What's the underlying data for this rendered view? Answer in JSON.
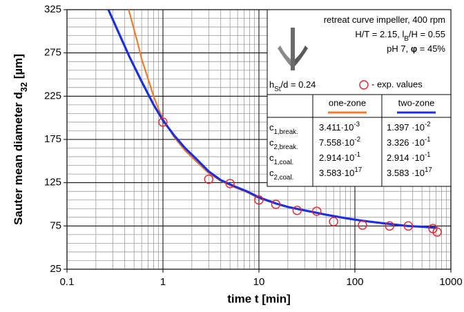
{
  "chart_data": {
    "type": "line",
    "xlabel": "time t [min]",
    "ylabel": [
      {
        "t": "Sauter mean diameter d"
      },
      {
        "t": "32",
        "sub": true
      },
      {
        "t": "  [µm]"
      }
    ],
    "xscale": "log",
    "xlim": [
      0.1,
      1000
    ],
    "xticks": [
      0.1,
      1,
      10,
      100,
      1000
    ],
    "ylim": [
      25,
      325
    ],
    "yticks": [
      25,
      75,
      125,
      175,
      225,
      275,
      325
    ],
    "grid": true,
    "minor_grid": true,
    "legend": "upper right",
    "series": [
      {
        "name": "one-zone",
        "color": "#f07c28",
        "x": [
          0.44,
          0.5,
          0.55,
          0.6,
          0.7,
          0.8,
          0.9,
          1,
          1.3,
          1.7,
          2.2,
          3,
          4,
          5.5,
          7.5,
          10,
          15,
          20,
          30,
          50,
          80,
          120,
          200,
          350,
          500,
          700
        ],
        "values": [
          325,
          302,
          285,
          268,
          245,
          225,
          210,
          199,
          178,
          162,
          150,
          136,
          127,
          120,
          114,
          107,
          101,
          97,
          93,
          88,
          84,
          81,
          78,
          75,
          74,
          72
        ]
      },
      {
        "name": "two-zone",
        "color": "#1c2fe0",
        "x": [
          0.27,
          0.35,
          0.45,
          0.6,
          0.8,
          1,
          1.3,
          1.7,
          2.2,
          3,
          4,
          5.5,
          7.5,
          10,
          15,
          20,
          30,
          50,
          80,
          120,
          200,
          350,
          500,
          700
        ],
        "values": [
          325,
          297,
          270,
          242,
          215,
          197,
          180,
          165,
          153,
          138,
          128,
          121,
          115,
          108,
          101,
          97,
          93,
          88,
          84,
          81,
          78,
          75,
          74,
          73
        ]
      },
      {
        "name": "- exp. values",
        "type": "scatter",
        "color": "#e8202a",
        "x": [
          1,
          3,
          5,
          10,
          15,
          25,
          40,
          60,
          120,
          230,
          360,
          650,
          720
        ],
        "values": [
          195,
          129,
          124,
          105,
          100,
          93,
          92,
          80,
          76,
          75,
          75,
          72,
          68
        ]
      }
    ],
    "annotation": [
      [
        {
          "t": "retreat curve impeller, 400 rpm"
        }
      ],
      [
        {
          "t": "H/T = 2.15, l"
        },
        {
          "t": "B",
          "sub": true
        },
        {
          "t": "/H = 0.55"
        }
      ],
      [
        {
          "t": "pH 7, "
        },
        {
          "t": "φ",
          "bold": true
        },
        {
          "t": " = 45%"
        }
      ]
    ],
    "geometry": [
      {
        "t": "h"
      },
      {
        "t": "St",
        "sub": true
      },
      {
        "t": "/d = 0.24"
      }
    ],
    "parameter_table": [
      {
        "label": [
          {
            "t": "c"
          },
          {
            "t": "1,break.",
            "sub": true
          }
        ],
        "cells": [
          [
            {
              "t": "3.411·10"
            },
            {
              "t": "-3",
              "sup": true
            }
          ],
          [
            {
              "t": "1.397 ·10"
            },
            {
              "t": "-2",
              "sup": true
            }
          ]
        ]
      },
      {
        "label": [
          {
            "t": "c"
          },
          {
            "t": "2,break.",
            "sub": true
          }
        ],
        "cells": [
          [
            {
              "t": "7.558·10"
            },
            {
              "t": "-2",
              "sup": true
            }
          ],
          [
            {
              "t": "3.326 ·10"
            },
            {
              "t": "-1",
              "sup": true
            }
          ]
        ]
      },
      {
        "label": [
          {
            "t": "c"
          },
          {
            "t": "1,coal.",
            "sub": true
          }
        ],
        "cells": [
          [
            {
              "t": "2.914·10"
            },
            {
              "t": "-1",
              "sup": true
            }
          ],
          [
            {
              "t": "2.914 ·10"
            },
            {
              "t": "-1",
              "sup": true
            }
          ]
        ]
      },
      {
        "label": [
          {
            "t": "c"
          },
          {
            "t": "2,coal.",
            "sub": true
          }
        ],
        "cells": [
          [
            {
              "t": "3.583·10"
            },
            {
              "t": "17",
              "sup": true
            }
          ],
          [
            {
              "t": "3.583 ·10"
            },
            {
              "t": "17",
              "sup": true
            }
          ]
        ]
      }
    ]
  }
}
